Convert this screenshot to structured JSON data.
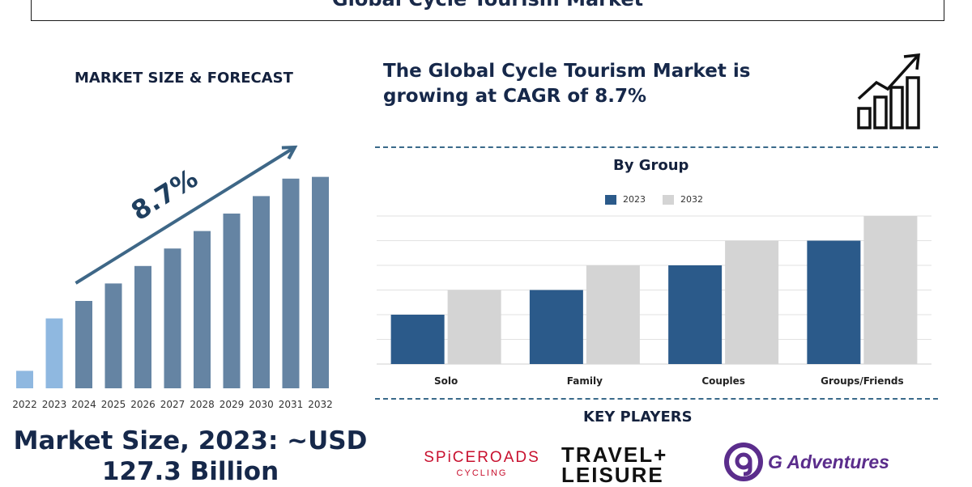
{
  "title": "Global Cycle Tourism Market",
  "left_panel": {
    "heading": "MARKET SIZE & FORECAST",
    "cagr_label": "8.7%",
    "market_size_line1": "Market Size, 2023: ~USD",
    "market_size_line2": "127.3 Billion"
  },
  "headline": {
    "line1": "The Global Cycle Tourism Market is",
    "line2": "growing at CAGR of 8.7%"
  },
  "group_chart_title": "By Group",
  "key_players_heading": "KEY PLAYERS",
  "key_players": {
    "spiceroads_name": "SPiCEROADS",
    "spiceroads_sub": "CYCLING",
    "travel_line1": "TRAVEL+",
    "travel_line2": "LEISURE",
    "gadventures_name": "G Adventures"
  },
  "colors": {
    "title_navy": "#1a2a4a",
    "forecast_bar": "#6584a3",
    "history_bar": "#8fb8e0",
    "arrow": "#3e6787",
    "series_2023": "#2b5a8a",
    "series_2032": "#d4d4d4",
    "spiceroads_red": "#c8102e",
    "g_purple": "#5b2d8c"
  },
  "icons": {
    "growth_chart": "growth-bar-chart-icon"
  },
  "chart_data": [
    {
      "type": "bar",
      "name": "forecast",
      "categories": [
        "2022",
        "2023",
        "2024",
        "2025",
        "2026",
        "2027",
        "2028",
        "2029",
        "2030",
        "2031",
        "2032"
      ],
      "values": [
        1.0,
        4.0,
        5.0,
        6.0,
        7.0,
        8.0,
        9.0,
        10.0,
        11.0,
        12.0,
        12.1
      ],
      "highlighted": [
        "2022",
        "2023"
      ],
      "annotation": "8.7%",
      "title": "MARKET SIZE & FORECAST",
      "ylim": [
        0,
        12.5
      ]
    },
    {
      "type": "bar",
      "title": "By Group",
      "categories": [
        "Solo",
        "Family",
        "Couples",
        "Groups/Friends"
      ],
      "series": [
        {
          "name": "2023",
          "values": [
            2,
            3,
            4,
            5
          ]
        },
        {
          "name": "2032",
          "values": [
            3,
            4,
            5,
            6
          ]
        }
      ],
      "ylim": [
        0,
        6
      ],
      "grid": true,
      "legend": "top-center"
    }
  ]
}
